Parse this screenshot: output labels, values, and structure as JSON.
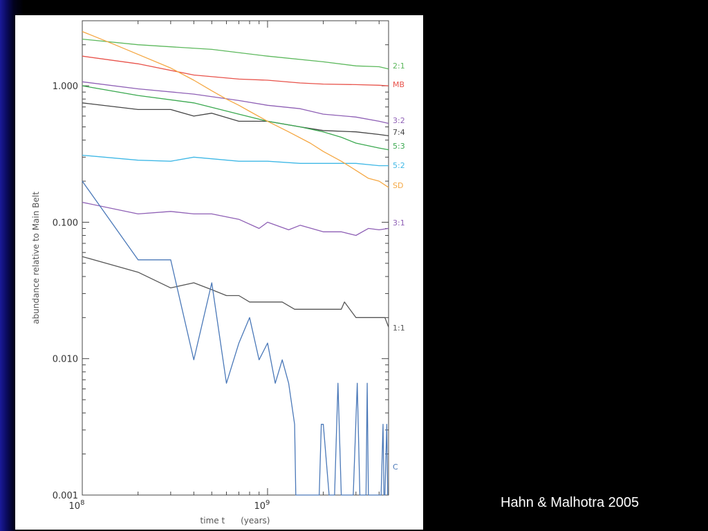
{
  "citation": "Hahn & Malhotra 2005",
  "chart_data": {
    "type": "line",
    "title": "",
    "xlabel": "time t      (years)",
    "ylabel": "abundance relative to Main Belt",
    "x_scale": "log",
    "y_scale": "log",
    "xlim": [
      100000000,
      4500000000
    ],
    "ylim": [
      0.001,
      3.0
    ],
    "grid": false,
    "y_ticks": [
      {
        "value": 0.001,
        "label": "0.001"
      },
      {
        "value": 0.01,
        "label": "0.010"
      },
      {
        "value": 0.1,
        "label": "0.100"
      },
      {
        "value": 1,
        "label": "1.000"
      }
    ],
    "x_ticks": [
      {
        "value": 100000000,
        "base": "10",
        "exp": "8"
      },
      {
        "value": 1000000000,
        "base": "10",
        "exp": "9"
      }
    ],
    "series": [
      {
        "name": "2:1",
        "color": "#5cb85c",
        "x": [
          100000000,
          200000000,
          500000000,
          1000000000,
          2000000000,
          3000000000,
          4000000000,
          4500000000
        ],
        "y": [
          2.2,
          2.0,
          1.85,
          1.65,
          1.5,
          1.4,
          1.38,
          1.33
        ]
      },
      {
        "name": "MB",
        "color": "#e8524a",
        "x": [
          100000000,
          200000000,
          400000000,
          700000000,
          1000000000,
          1500000000,
          2000000000,
          3000000000,
          4000000000,
          4500000000
        ],
        "y": [
          1.65,
          1.45,
          1.2,
          1.12,
          1.1,
          1.05,
          1.03,
          1.02,
          1.01,
          1.0
        ]
      },
      {
        "name": "3:2",
        "color": "#8e5fb5",
        "x": [
          100000000,
          200000000,
          400000000,
          700000000,
          1000000000,
          1500000000,
          2000000000,
          3000000000,
          4000000000,
          4500000000
        ],
        "y": [
          1.07,
          0.95,
          0.87,
          0.78,
          0.72,
          0.68,
          0.62,
          0.59,
          0.55,
          0.53
        ]
      },
      {
        "name": "7:4",
        "color": "#444444",
        "x": [
          100000000,
          200000000,
          300000000,
          400000000,
          500000000,
          700000000,
          1000000000,
          1500000000,
          2000000000,
          3000000000,
          4000000000,
          4500000000
        ],
        "y": [
          0.75,
          0.67,
          0.67,
          0.6,
          0.63,
          0.55,
          0.55,
          0.5,
          0.47,
          0.46,
          0.44,
          0.43
        ]
      },
      {
        "name": "5:3",
        "color": "#3aa84f",
        "x": [
          100000000,
          200000000,
          400000000,
          700000000,
          1000000000,
          1500000000,
          2000000000,
          2500000000,
          3000000000,
          4000000000,
          4500000000
        ],
        "y": [
          1.0,
          0.85,
          0.75,
          0.62,
          0.55,
          0.5,
          0.46,
          0.42,
          0.38,
          0.35,
          0.34
        ]
      },
      {
        "name": "5:2",
        "color": "#3fb8e6",
        "x": [
          100000000,
          200000000,
          300000000,
          400000000,
          700000000,
          1000000000,
          1500000000,
          2000000000,
          3000000000,
          4000000000,
          4500000000
        ],
        "y": [
          0.31,
          0.285,
          0.28,
          0.3,
          0.28,
          0.28,
          0.27,
          0.27,
          0.27,
          0.26,
          0.26
        ]
      },
      {
        "name": "SD",
        "color": "#f5a742",
        "x": [
          100000000,
          150000000,
          200000000,
          300000000,
          400000000,
          500000000,
          600000000,
          700000000,
          800000000,
          1000000000,
          1300000000,
          1700000000,
          2000000000,
          2500000000,
          3000000000,
          3500000000,
          4000000000,
          4500000000
        ],
        "y": [
          2.5,
          2.0,
          1.7,
          1.35,
          1.1,
          0.92,
          0.8,
          0.72,
          0.65,
          0.55,
          0.46,
          0.38,
          0.33,
          0.28,
          0.24,
          0.21,
          0.2,
          0.18
        ]
      },
      {
        "name": "3:1",
        "color": "#8e5fb5",
        "x": [
          100000000,
          200000000,
          300000000,
          400000000,
          500000000,
          700000000,
          900000000,
          1000000000,
          1300000000,
          1500000000,
          2000000000,
          2500000000,
          3000000000,
          3500000000,
          4000000000,
          4500000000
        ],
        "y": [
          0.14,
          0.115,
          0.12,
          0.115,
          0.115,
          0.105,
          0.09,
          0.1,
          0.088,
          0.095,
          0.085,
          0.085,
          0.08,
          0.09,
          0.088,
          0.09
        ]
      },
      {
        "name": "1:1",
        "color": "#555555",
        "x": [
          100000000,
          200000000,
          300000000,
          400000000,
          500000000,
          600000000,
          700000000,
          800000000,
          1000000000,
          1200000000,
          1400000000,
          2000000000,
          2500000000,
          2600000000,
          3000000000,
          4000000000,
          4300000000,
          4500000000
        ],
        "y": [
          0.056,
          0.043,
          0.033,
          0.036,
          0.032,
          0.029,
          0.029,
          0.026,
          0.026,
          0.026,
          0.023,
          0.023,
          0.023,
          0.026,
          0.02,
          0.02,
          0.02,
          0.017
        ]
      },
      {
        "name": "C",
        "color": "#4a78b8",
        "x": [
          100000000,
          200000000,
          300000000,
          400000000,
          500000000,
          600000000,
          700000000,
          800000000,
          900000000,
          1000000000,
          1100000000,
          1200000000,
          1300000000,
          1400000000,
          1420000000,
          1900000000,
          1950000000,
          2000000000,
          2150000000,
          2300000000,
          2400000000,
          2500000000,
          2550000000,
          2900000000,
          3050000000,
          3150000000,
          3200000000,
          3400000000,
          3450000000,
          3500000000,
          4100000000,
          4200000000,
          4250000000,
          4300000000,
          4400000000,
          4450000000
        ],
        "y": [
          0.2,
          0.053,
          0.053,
          0.0098,
          0.036,
          0.0066,
          0.013,
          0.02,
          0.0098,
          0.013,
          0.0066,
          0.0098,
          0.0066,
          0.0033,
          0.001,
          0.001,
          0.0033,
          0.0033,
          0.001,
          0.001,
          0.0066,
          0.001,
          0.001,
          0.001,
          0.0066,
          0.001,
          0.001,
          0.001,
          0.0066,
          0.001,
          0.001,
          0.0033,
          0.001,
          0.001,
          0.0033,
          0.001
        ]
      }
    ]
  }
}
